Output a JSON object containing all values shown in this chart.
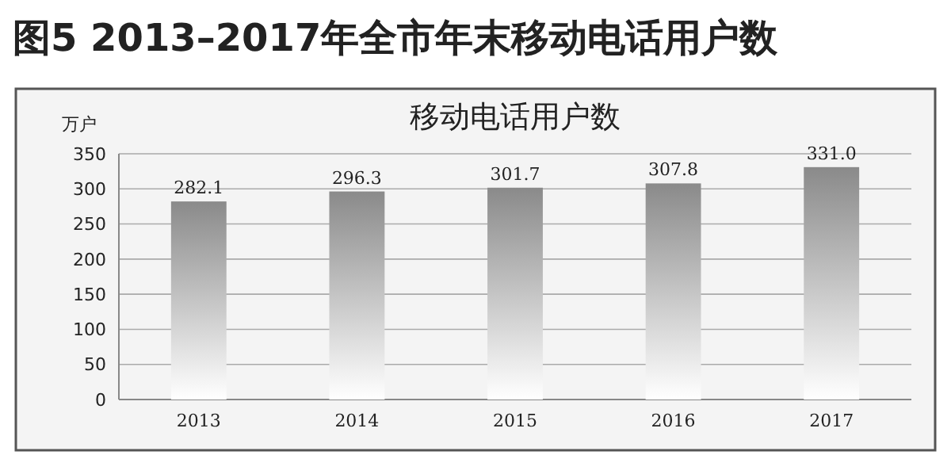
{
  "chart_data": {
    "type": "bar",
    "title": "移动电话用户数",
    "subtitle": "图5  2013–2017年全市年末移动电话用户数",
    "ylabel": "万户",
    "categories": [
      "2013",
      "2014",
      "2015",
      "2016",
      "2017"
    ],
    "values": [
      282.1,
      296.3,
      301.7,
      307.8,
      331.0
    ],
    "value_labels": [
      "282.1",
      "296.3",
      "301.7",
      "307.8",
      "331.0"
    ],
    "color": "#8a8a8a",
    "ylim": [
      0,
      350
    ],
    "yticks": [
      0,
      50,
      100,
      150,
      200,
      250,
      300,
      350
    ],
    "grid": "y"
  }
}
